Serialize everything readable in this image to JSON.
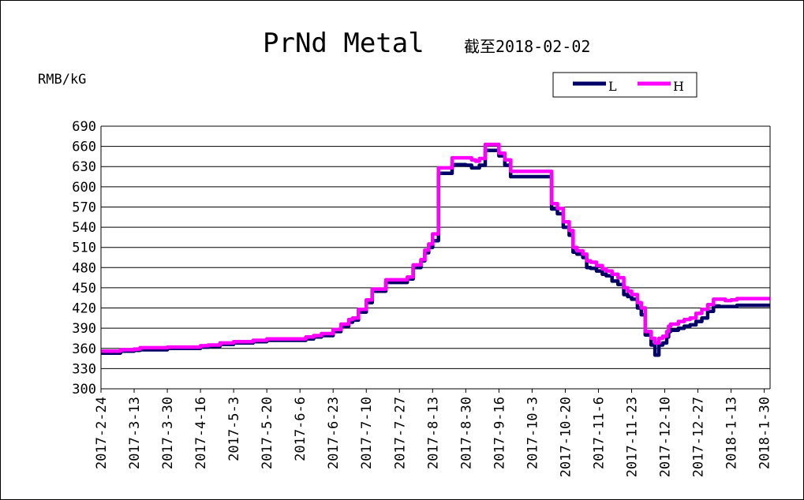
{
  "chart_data": {
    "type": "line",
    "title": "PrNd Metal",
    "subtitle": "截至2018-02-02",
    "ylabel": "RMB/kG",
    "ylim": [
      300,
      690
    ],
    "yticks": [
      "690",
      "660",
      "630",
      "600",
      "570",
      "540",
      "510",
      "480",
      "450",
      "420",
      "390",
      "360",
      "330",
      "300"
    ],
    "grid": true,
    "legend_position": "top-right",
    "x_range": [
      "2017-2-24",
      "2018-2-2"
    ],
    "xticks": [
      "2017-2-24",
      "2017-3-13",
      "2017-3-30",
      "2017-4-16",
      "2017-5-3",
      "2017-5-20",
      "2017-6-6",
      "2017-6-23",
      "2017-7-10",
      "2017-7-27",
      "2017-8-13",
      "2017-8-30",
      "2017-9-16",
      "2017-10-3",
      "2017-10-20",
      "2017-11-6",
      "2017-11-23",
      "2017-12-10",
      "2017-12-27",
      "2018-1-13",
      "2018-1-30"
    ],
    "series": [
      {
        "name": "L",
        "color": "#000066",
        "x": [
          "2017-2-24",
          "2017-3-1",
          "2017-3-6",
          "2017-3-13",
          "2017-3-16",
          "2017-3-30",
          "2017-4-6",
          "2017-4-16",
          "2017-4-20",
          "2017-4-26",
          "2017-5-3",
          "2017-5-10",
          "2017-5-13",
          "2017-5-20",
          "2017-6-6",
          "2017-6-9",
          "2017-6-13",
          "2017-6-17",
          "2017-6-23",
          "2017-6-27",
          "2017-7-1",
          "2017-7-3",
          "2017-7-6",
          "2017-7-10",
          "2017-7-13",
          "2017-7-20",
          "2017-7-23",
          "2017-7-27",
          "2017-7-31",
          "2017-8-3",
          "2017-8-7",
          "2017-8-9",
          "2017-8-11",
          "2017-8-13",
          "2017-8-16",
          "2017-8-23",
          "2017-8-30",
          "2017-9-2",
          "2017-9-4",
          "2017-9-6",
          "2017-9-9",
          "2017-9-12",
          "2017-9-14",
          "2017-9-16",
          "2017-9-19",
          "2017-9-22",
          "2017-10-3",
          "2017-10-6",
          "2017-10-8",
          "2017-10-11",
          "2017-10-13",
          "2017-10-16",
          "2017-10-19",
          "2017-10-22",
          "2017-10-24",
          "2017-10-26",
          "2017-10-29",
          "2017-10-31",
          "2017-11-2",
          "2017-11-5",
          "2017-11-8",
          "2017-11-10",
          "2017-11-13",
          "2017-11-16",
          "2017-11-19",
          "2017-11-21",
          "2017-11-23",
          "2017-11-26",
          "2017-11-28",
          "2017-11-30",
          "2017-12-3",
          "2017-12-5",
          "2017-12-7",
          "2017-12-9",
          "2017-12-11",
          "2017-12-12",
          "2017-12-13",
          "2017-12-17",
          "2017-12-20",
          "2017-12-23",
          "2017-12-26",
          "2017-12-29",
          "2018-1-1",
          "2018-1-4",
          "2018-1-7",
          "2018-1-10",
          "2018-1-13",
          "2018-1-16",
          "2018-1-19",
          "2018-1-25",
          "2018-2-2"
        ],
        "y": [
          353,
          353,
          356,
          357,
          358,
          360,
          360,
          362,
          363,
          366,
          368,
          368,
          370,
          372,
          372,
          374,
          377,
          379,
          385,
          393,
          399,
          402,
          414,
          428,
          445,
          458,
          458,
          458,
          463,
          480,
          490,
          502,
          510,
          520,
          620,
          633,
          632,
          628,
          628,
          632,
          654,
          654,
          654,
          646,
          632,
          615,
          615,
          615,
          615,
          615,
          567,
          560,
          540,
          528,
          503,
          500,
          495,
          480,
          479,
          475,
          470,
          468,
          460,
          455,
          440,
          437,
          433,
          420,
          410,
          380,
          365,
          350,
          365,
          368,
          377,
          385,
          387,
          390,
          393,
          395,
          400,
          405,
          415,
          423,
          422,
          422,
          422,
          424,
          424,
          424,
          424
        ]
      },
      {
        "name": "H",
        "color": "#ff00ff",
        "x": [
          "2017-2-24",
          "2017-3-1",
          "2017-3-6",
          "2017-3-13",
          "2017-3-16",
          "2017-3-30",
          "2017-4-6",
          "2017-4-16",
          "2017-4-20",
          "2017-4-26",
          "2017-5-3",
          "2017-5-10",
          "2017-5-13",
          "2017-5-20",
          "2017-6-6",
          "2017-6-9",
          "2017-6-13",
          "2017-6-17",
          "2017-6-23",
          "2017-6-27",
          "2017-7-1",
          "2017-7-3",
          "2017-7-6",
          "2017-7-10",
          "2017-7-13",
          "2017-7-20",
          "2017-7-23",
          "2017-7-27",
          "2017-7-31",
          "2017-8-3",
          "2017-8-7",
          "2017-8-9",
          "2017-8-11",
          "2017-8-13",
          "2017-8-16",
          "2017-8-23",
          "2017-8-30",
          "2017-9-2",
          "2017-9-4",
          "2017-9-6",
          "2017-9-9",
          "2017-9-12",
          "2017-9-14",
          "2017-9-16",
          "2017-9-19",
          "2017-9-22",
          "2017-10-3",
          "2017-10-6",
          "2017-10-8",
          "2017-10-11",
          "2017-10-13",
          "2017-10-16",
          "2017-10-19",
          "2017-10-22",
          "2017-10-24",
          "2017-10-26",
          "2017-10-29",
          "2017-10-31",
          "2017-11-2",
          "2017-11-5",
          "2017-11-8",
          "2017-11-10",
          "2017-11-13",
          "2017-11-16",
          "2017-11-19",
          "2017-11-21",
          "2017-11-23",
          "2017-11-26",
          "2017-11-28",
          "2017-11-30",
          "2017-12-3",
          "2017-12-5",
          "2017-12-7",
          "2017-12-9",
          "2017-12-11",
          "2017-12-12",
          "2017-12-13",
          "2017-12-17",
          "2017-12-20",
          "2017-12-23",
          "2017-12-26",
          "2017-12-29",
          "2018-1-1",
          "2018-1-4",
          "2018-1-7",
          "2018-1-10",
          "2018-1-13",
          "2018-1-16",
          "2018-1-19",
          "2018-1-25",
          "2018-2-2"
        ],
        "y": [
          356,
          356,
          358,
          359,
          361,
          362,
          362,
          364,
          365,
          368,
          370,
          370,
          372,
          374,
          374,
          377,
          379,
          382,
          388,
          396,
          403,
          405,
          418,
          432,
          448,
          462,
          462,
          462,
          466,
          484,
          492,
          506,
          515,
          530,
          628,
          643,
          643,
          640,
          638,
          642,
          663,
          663,
          663,
          650,
          640,
          623,
          623,
          623,
          623,
          623,
          575,
          568,
          548,
          535,
          510,
          505,
          500,
          490,
          488,
          483,
          478,
          475,
          470,
          465,
          450,
          445,
          440,
          428,
          420,
          385,
          375,
          368,
          375,
          378,
          385,
          393,
          396,
          400,
          403,
          405,
          412,
          418,
          425,
          433,
          433,
          431,
          432,
          434,
          434,
          434,
          434
        ]
      }
    ]
  }
}
